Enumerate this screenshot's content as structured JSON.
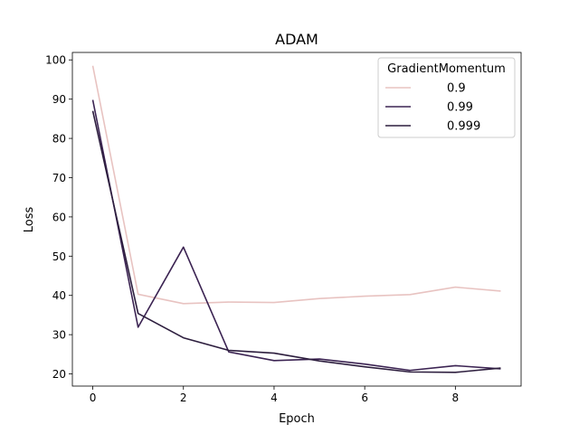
{
  "chart_data": {
    "type": "line",
    "title": "ADAM",
    "xlabel": "Epoch",
    "ylabel": "Loss",
    "x": [
      0,
      1,
      2,
      3,
      4,
      5,
      6,
      7,
      8,
      9
    ],
    "xlim": [
      -0.45,
      9.45
    ],
    "ylim": [
      16.9,
      101.9
    ],
    "xticks": [
      0,
      2,
      4,
      6,
      8
    ],
    "yticks": [
      20,
      30,
      40,
      50,
      60,
      70,
      80,
      90,
      100
    ],
    "grid": false,
    "legend": {
      "title": "GradientMomentum",
      "placement": "top-right"
    },
    "series": [
      {
        "name": "0.9",
        "color": "#e8c3c1",
        "values": [
          98.5,
          40.3,
          37.9,
          38.3,
          38.2,
          39.2,
          39.8,
          40.2,
          42.1,
          41.1
        ]
      },
      {
        "name": "0.99",
        "color": "#3b2352",
        "values": [
          89.8,
          31.9,
          52.3,
          25.6,
          23.4,
          23.8,
          22.5,
          20.9,
          22.1,
          21.3
        ]
      },
      {
        "name": "0.999",
        "color": "#2d1e3e",
        "values": [
          87.0,
          35.4,
          29.2,
          26.0,
          25.3,
          23.3,
          21.8,
          20.5,
          20.4,
          21.5
        ]
      }
    ]
  }
}
